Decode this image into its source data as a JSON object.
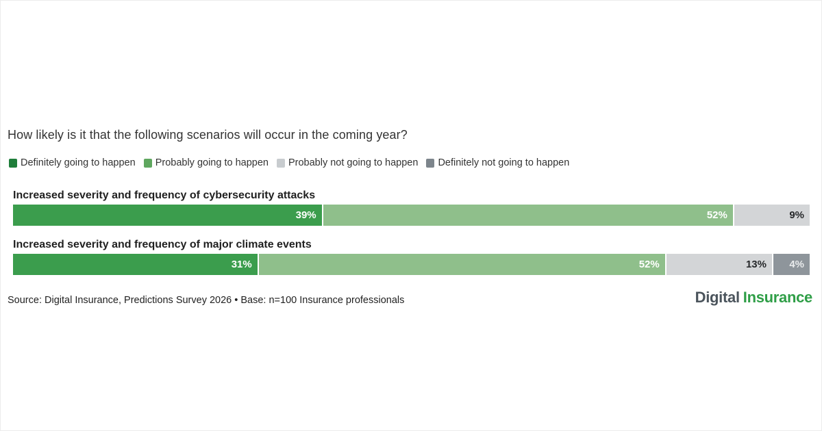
{
  "title": "How likely is it that the following scenarios will occur in the coming year?",
  "legend": {
    "position": "top",
    "items": [
      {
        "label": "Definitely going to happen",
        "color": "#1f7e3a"
      },
      {
        "label": "Probably going to happen",
        "color": "#5fa75f"
      },
      {
        "label": "Probably not going to happen",
        "color": "#c8cccf"
      },
      {
        "label": "Definitely not going to happen",
        "color": "#7d858c"
      }
    ]
  },
  "chart_data": {
    "type": "bar",
    "variant": "horizontal-stacked",
    "unit": "percent",
    "xlim": [
      0,
      100
    ],
    "grid": false,
    "value_labels_position": "inside-right",
    "categories": [
      "Increased severity and frequency of cybersecurity attacks",
      "Increased severity and frequency of major climate events"
    ],
    "series": [
      {
        "name": "Definitely going to happen",
        "values": [
          39,
          31
        ],
        "color": "#3b9d4d"
      },
      {
        "name": "Probably going to happen",
        "values": [
          52,
          52
        ],
        "color": "#8fbf8b"
      },
      {
        "name": "Probably not going to happen",
        "values": [
          9,
          13
        ],
        "color": "#d3d5d7"
      },
      {
        "name": "Definitely not going to happen",
        "values": [
          null,
          4
        ],
        "color": "#8e959b"
      }
    ],
    "rows": [
      {
        "label": "Increased severity and frequency of cybersecurity attacks",
        "segments": [
          {
            "name": "Definitely going to happen",
            "value": 39,
            "display": "39%",
            "color": "#3b9d4d",
            "text_color": "#ffffff"
          },
          {
            "name": "Probably going to happen",
            "value": 52,
            "display": "52%",
            "color": "#8fbf8b",
            "text_color": "#ffffff"
          },
          {
            "name": "Probably not going to happen",
            "value": 9,
            "display": "9%",
            "color": "#d3d5d7",
            "text_color": "#26282a"
          }
        ]
      },
      {
        "label": "Increased severity and frequency of major climate events",
        "segments": [
          {
            "name": "Definitely going to happen",
            "value": 31,
            "display": "31%",
            "color": "#3b9d4d",
            "text_color": "#ffffff"
          },
          {
            "name": "Probably going to happen",
            "value": 52,
            "display": "52%",
            "color": "#8fbf8b",
            "text_color": "#ffffff"
          },
          {
            "name": "Probably not going to happen",
            "value": 13,
            "display": "13%",
            "color": "#d3d5d7",
            "text_color": "#26282a"
          },
          {
            "name": "Definitely not going to happen",
            "value": 4,
            "display": "4%",
            "color": "#8e959b",
            "text_color": "#e9ebec"
          }
        ]
      }
    ]
  },
  "footer": {
    "source": "Source: Digital Insurance, Predictions Survey 2026 • Base: n=100 Insurance professionals",
    "logo": {
      "word1": "Digital",
      "word2": "Insurance",
      "word1_color": "#4b545c",
      "word2_color": "#2f9e47"
    }
  }
}
